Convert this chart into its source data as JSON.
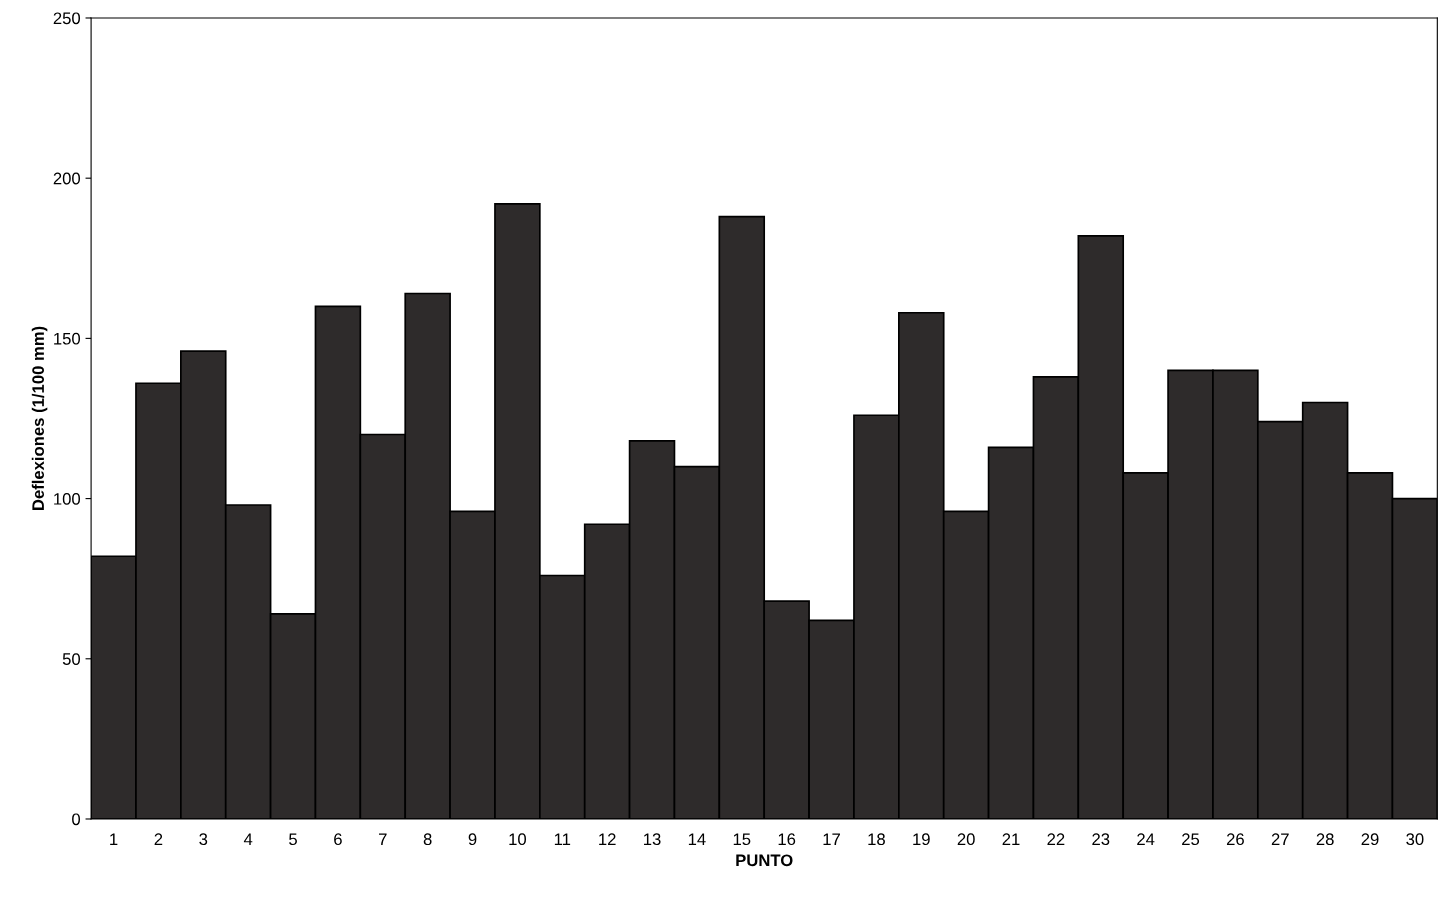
{
  "chart_data": {
    "type": "bar",
    "xlabel": "PUNTO",
    "ylabel": "Deflexiones (1/100 mm)",
    "categories": [
      "1",
      "2",
      "3",
      "4",
      "5",
      "6",
      "7",
      "8",
      "9",
      "10",
      "11",
      "12",
      "13",
      "14",
      "15",
      "16",
      "17",
      "18",
      "19",
      "20",
      "21",
      "22",
      "23",
      "24",
      "25",
      "26",
      "27",
      "28",
      "29",
      "30"
    ],
    "values": [
      82,
      136,
      146,
      98,
      64,
      160,
      120,
      164,
      96,
      192,
      76,
      92,
      118,
      110,
      188,
      68,
      62,
      126,
      158,
      96,
      116,
      138,
      182,
      108,
      140,
      140,
      124,
      130,
      108,
      100
    ],
    "color": "#2e2b2b",
    "ylim": [
      0,
      250
    ],
    "yticks": [
      0,
      50,
      100,
      150,
      200,
      250
    ],
    "grid": false
  }
}
